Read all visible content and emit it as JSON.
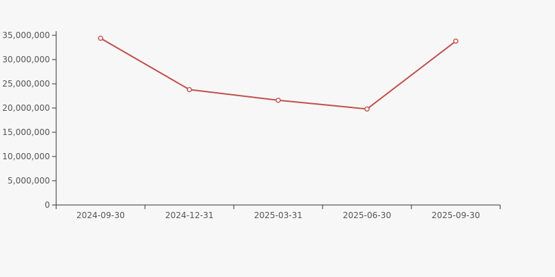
{
  "page": {
    "background": "#f7f7f7"
  },
  "chart_data": {
    "type": "line",
    "title": "",
    "categories": [
      "2024-09-30",
      "2024-12-31",
      "2025-03-31",
      "2025-06-30",
      "2025-09-30"
    ],
    "series": [
      {
        "name": "series-1",
        "values": [
          34400000,
          23800000,
          21600000,
          19800000,
          33800000
        ]
      }
    ],
    "xlabel": "",
    "ylabel": "",
    "ylim": [
      0,
      35000000
    ],
    "y_ticks": [
      0,
      5000000,
      10000000,
      15000000,
      20000000,
      25000000,
      30000000,
      35000000
    ],
    "y_tick_labels": [
      "0",
      "5,000,000",
      "10,000,000",
      "15,000,000",
      "20,000,000",
      "25,000,000",
      "30,000,000",
      "35,000,000"
    ],
    "grid": false,
    "legend": false,
    "marker": "hollow-circle",
    "colors": {
      "line": "#c0504b",
      "marker_fill": "#ffffff",
      "axis": "#333333",
      "label": "#555555"
    }
  }
}
